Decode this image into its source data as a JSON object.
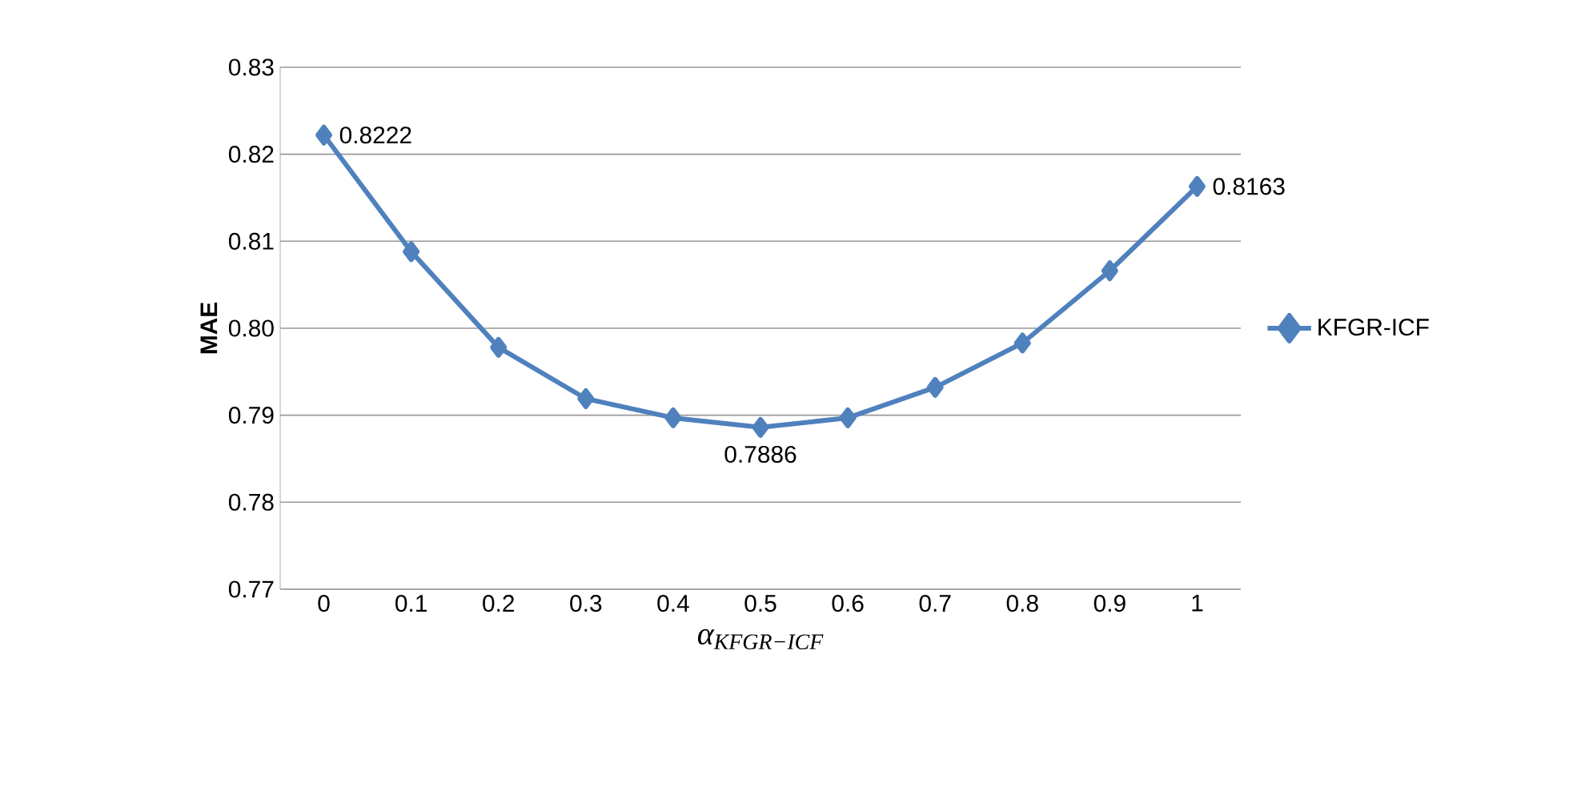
{
  "chart_data": {
    "type": "line",
    "xlabel": "α$_{KFGR−ICF}$",
    "ylabel": "MAE",
    "categories": [
      "0",
      "0.1",
      "0.2",
      "0.3",
      "0.4",
      "0.5",
      "0.6",
      "0.7",
      "0.8",
      "0.9",
      "1"
    ],
    "series": [
      {
        "name": "KFGR-ICF",
        "color": "#4f81bd",
        "values": [
          0.8222,
          0.8088,
          0.7978,
          0.7919,
          0.7897,
          0.7886,
          0.7897,
          0.7932,
          0.7983,
          0.8066,
          0.8163
        ]
      }
    ],
    "ylim": [
      0.77,
      0.83
    ],
    "yticks": [
      0.77,
      0.78,
      0.79,
      {
        "value": 0.8,
        "label": "0.80"
      },
      0.81,
      0.82,
      0.83
    ],
    "annotations": [
      {
        "text": "0.8222",
        "x": "0",
        "y": 0.8222
      },
      {
        "text": "0.7886",
        "x": "0.5",
        "y": 0.7886
      },
      {
        "text": "0.8163",
        "x": "1",
        "y": 0.8163
      }
    ],
    "grid": "y",
    "legend": "right",
    "marker": "diamond",
    "line_style": "solid"
  }
}
